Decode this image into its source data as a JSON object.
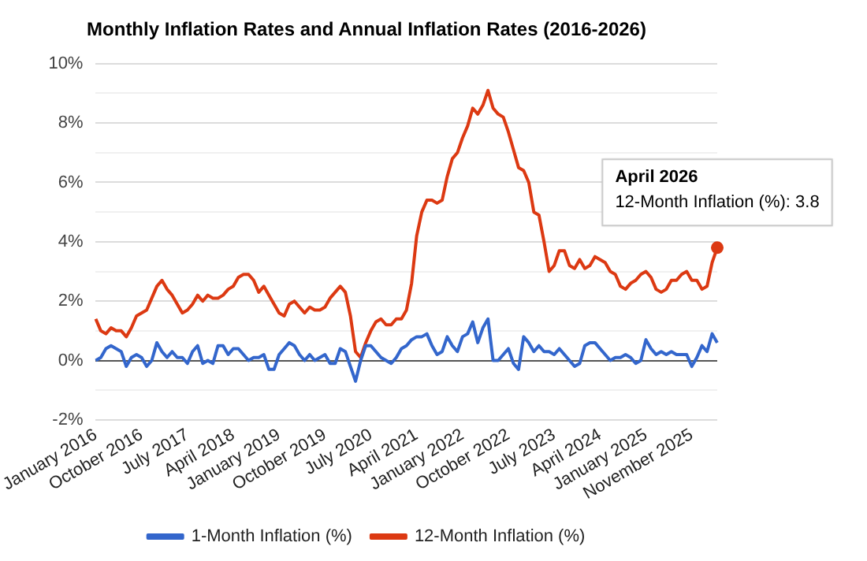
{
  "chart_data": {
    "type": "line",
    "title": "Monthly Inflation Rates and Annual Inflation Rates (2016-2026)",
    "categories": [
      "January 2016",
      null,
      null,
      null,
      null,
      null,
      null,
      null,
      null,
      "October 2016",
      null,
      null,
      null,
      null,
      null,
      null,
      null,
      null,
      "July 2017",
      null,
      null,
      null,
      null,
      null,
      null,
      null,
      null,
      "April 2018",
      null,
      null,
      null,
      null,
      null,
      null,
      null,
      null,
      "January 2019",
      null,
      null,
      null,
      null,
      null,
      null,
      null,
      null,
      "October 2019",
      null,
      null,
      null,
      null,
      null,
      null,
      null,
      null,
      "July 2020",
      null,
      null,
      null,
      null,
      null,
      null,
      null,
      null,
      "April 2021",
      null,
      null,
      null,
      null,
      null,
      null,
      null,
      null,
      "January 2022",
      null,
      null,
      null,
      null,
      null,
      null,
      null,
      null,
      "October 2022",
      null,
      null,
      null,
      null,
      null,
      null,
      null,
      null,
      "July 2023",
      null,
      null,
      null,
      null,
      null,
      null,
      null,
      null,
      "April 2024",
      null,
      null,
      null,
      null,
      null,
      null,
      null,
      null,
      "January 2025",
      null,
      null,
      null,
      null,
      null,
      null,
      null,
      null,
      "November 2025",
      null,
      null,
      null,
      null,
      null
    ],
    "series": [
      {
        "name": "1-Month Inflation (%)",
        "color": "#3366cc",
        "values": [
          0.0,
          0.1,
          0.4,
          0.5,
          0.4,
          0.3,
          -0.2,
          0.1,
          0.2,
          0.1,
          -0.2,
          0.0,
          0.6,
          0.3,
          0.1,
          0.3,
          0.1,
          0.1,
          -0.1,
          0.3,
          0.5,
          -0.1,
          0.0,
          -0.1,
          0.5,
          0.5,
          0.2,
          0.4,
          0.4,
          0.2,
          0.0,
          0.1,
          0.1,
          0.2,
          -0.3,
          -0.3,
          0.2,
          0.4,
          0.6,
          0.5,
          0.2,
          0.0,
          0.2,
          0.0,
          0.1,
          0.2,
          -0.1,
          -0.1,
          0.4,
          0.3,
          -0.2,
          -0.7,
          0.0,
          0.5,
          0.5,
          0.3,
          0.1,
          0.0,
          -0.1,
          0.1,
          0.4,
          0.5,
          0.7,
          0.8,
          0.8,
          0.9,
          0.5,
          0.2,
          0.3,
          0.8,
          0.5,
          0.3,
          0.8,
          0.9,
          1.3,
          0.6,
          1.1,
          1.4,
          0.0,
          0.0,
          0.2,
          0.4,
          -0.1,
          -0.3,
          0.8,
          0.6,
          0.3,
          0.5,
          0.3,
          0.3,
          0.2,
          0.4,
          0.2,
          0.0,
          -0.2,
          -0.1,
          0.5,
          0.6,
          0.6,
          0.4,
          0.2,
          0.0,
          0.1,
          0.1,
          0.2,
          0.1,
          -0.1,
          0.0,
          0.7,
          0.4,
          0.2,
          0.3,
          0.2,
          0.3,
          0.2,
          0.2,
          0.2,
          -0.2,
          0.1,
          0.5,
          0.3,
          0.9,
          0.6
        ]
      },
      {
        "name": "12-Month Inflation (%)",
        "color": "#dc3912",
        "values": [
          1.4,
          1.0,
          0.9,
          1.1,
          1.0,
          1.0,
          0.8,
          1.1,
          1.5,
          1.6,
          1.7,
          2.1,
          2.5,
          2.7,
          2.4,
          2.2,
          1.9,
          1.6,
          1.7,
          1.9,
          2.2,
          2.0,
          2.2,
          2.1,
          2.1,
          2.2,
          2.4,
          2.5,
          2.8,
          2.9,
          2.9,
          2.7,
          2.3,
          2.5,
          2.2,
          1.9,
          1.6,
          1.5,
          1.9,
          2.0,
          1.8,
          1.6,
          1.8,
          1.7,
          1.7,
          1.8,
          2.1,
          2.3,
          2.5,
          2.3,
          1.5,
          0.3,
          0.1,
          0.6,
          1.0,
          1.3,
          1.4,
          1.2,
          1.2,
          1.4,
          1.4,
          1.7,
          2.6,
          4.2,
          5.0,
          5.4,
          5.4,
          5.3,
          5.4,
          6.2,
          6.8,
          7.0,
          7.5,
          7.9,
          8.5,
          8.3,
          8.6,
          9.1,
          8.5,
          8.3,
          8.2,
          7.7,
          7.1,
          6.5,
          6.4,
          6.0,
          5.0,
          4.9,
          4.0,
          3.0,
          3.2,
          3.7,
          3.7,
          3.2,
          3.1,
          3.4,
          3.1,
          3.2,
          3.5,
          3.4,
          3.3,
          3.0,
          2.9,
          2.5,
          2.4,
          2.6,
          2.7,
          2.9,
          3.0,
          2.8,
          2.4,
          2.3,
          2.4,
          2.7,
          2.7,
          2.9,
          3.0,
          2.7,
          2.7,
          2.4,
          2.5,
          3.3,
          3.8
        ]
      }
    ],
    "ylim": [
      -2,
      10
    ],
    "yticks": [
      {
        "value": -2,
        "label": "-2%"
      },
      {
        "value": -1,
        "label": null
      },
      {
        "value": 0,
        "label": "0%"
      },
      {
        "value": 1,
        "label": null
      },
      {
        "value": 2,
        "label": "2%"
      },
      {
        "value": 3,
        "label": null
      },
      {
        "value": 4,
        "label": "4%"
      },
      {
        "value": 5,
        "label": null
      },
      {
        "value": 6,
        "label": "6%"
      },
      {
        "value": 7,
        "label": null
      },
      {
        "value": 8,
        "label": "8%"
      },
      {
        "value": 9,
        "label": null
      },
      {
        "value": 10,
        "label": "10%"
      }
    ],
    "grid": "y",
    "legend": "bottom",
    "marker": "none",
    "line_style": "solid",
    "annotations": [
      {
        "text": "April 2026\n12-Month Inflation (%): 3.8",
        "y": 3.8
      }
    ]
  }
}
